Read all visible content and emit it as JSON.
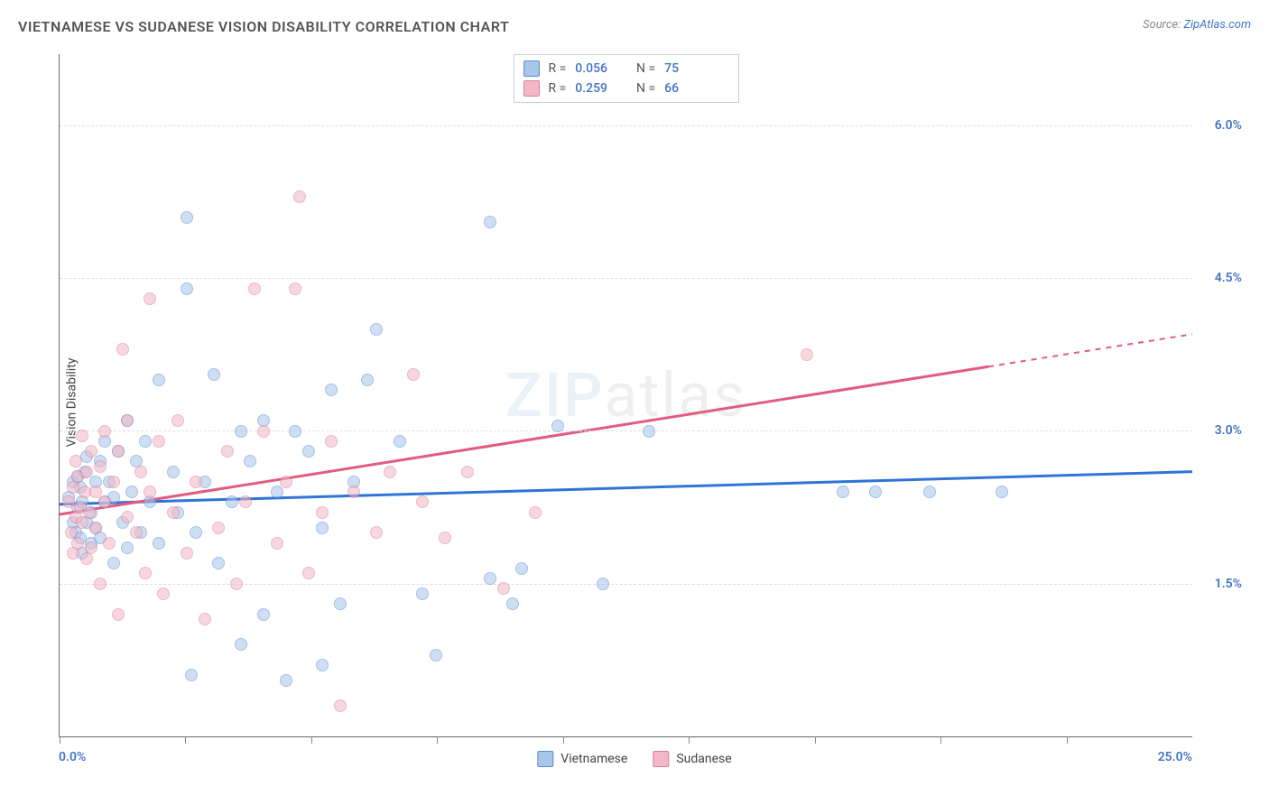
{
  "title": "VIETNAMESE VS SUDANESE VISION DISABILITY CORRELATION CHART",
  "source_prefix": "Source: ",
  "source_link": "ZipAtlas.com",
  "chart": {
    "type": "scatter",
    "ylabel": "Vision Disability",
    "watermark": "ZIPatlas",
    "xlim": [
      0.0,
      25.0
    ],
    "ylim": [
      0.0,
      6.7
    ],
    "x_tick_step": 2.778,
    "y_grid": [
      1.5,
      3.0,
      4.5,
      6.0
    ],
    "y_grid_labels": [
      "1.5%",
      "3.0%",
      "4.5%",
      "6.0%"
    ],
    "xlim_labels": [
      "0.0%",
      "25.0%"
    ],
    "label_color": "#4472c4",
    "axis_label_color": "#444444",
    "grid_color": "#dddddd",
    "background_color": "#ffffff",
    "marker_radius": 7,
    "marker_opacity": 0.55,
    "line_width": 3,
    "series": [
      {
        "name": "Vietnamese",
        "fill": "#a8c5ea",
        "stroke": "#5b8dd6",
        "line_color": "#2e75d6",
        "R": "0.056",
        "N": "75",
        "trend": {
          "x1": 0,
          "y1": 2.28,
          "x2": 25,
          "y2": 2.6,
          "dash_from_x": 25
        },
        "points": [
          [
            0.2,
            2.35
          ],
          [
            0.3,
            2.1
          ],
          [
            0.3,
            2.5
          ],
          [
            0.35,
            2.0
          ],
          [
            0.4,
            2.55
          ],
          [
            0.4,
            2.25
          ],
          [
            0.45,
            1.95
          ],
          [
            0.45,
            2.45
          ],
          [
            0.5,
            2.3
          ],
          [
            0.5,
            1.8
          ],
          [
            0.55,
            2.6
          ],
          [
            0.6,
            2.1
          ],
          [
            0.6,
            2.75
          ],
          [
            0.7,
            2.2
          ],
          [
            0.7,
            1.9
          ],
          [
            0.8,
            2.5
          ],
          [
            0.8,
            2.05
          ],
          [
            0.9,
            2.7
          ],
          [
            0.9,
            1.95
          ],
          [
            1.0,
            2.3
          ],
          [
            1.0,
            2.9
          ],
          [
            1.1,
            2.5
          ],
          [
            1.2,
            1.7
          ],
          [
            1.2,
            2.35
          ],
          [
            1.3,
            2.8
          ],
          [
            1.4,
            2.1
          ],
          [
            1.5,
            3.1
          ],
          [
            1.5,
            1.85
          ],
          [
            1.6,
            2.4
          ],
          [
            1.7,
            2.7
          ],
          [
            1.8,
            2.0
          ],
          [
            1.9,
            2.9
          ],
          [
            2.0,
            2.3
          ],
          [
            2.2,
            3.5
          ],
          [
            2.2,
            1.9
          ],
          [
            2.5,
            2.6
          ],
          [
            2.6,
            2.2
          ],
          [
            2.8,
            5.1
          ],
          [
            2.8,
            4.4
          ],
          [
            2.9,
            0.6
          ],
          [
            3.0,
            2.0
          ],
          [
            3.2,
            2.5
          ],
          [
            3.4,
            3.55
          ],
          [
            3.5,
            1.7
          ],
          [
            3.8,
            2.3
          ],
          [
            4.0,
            3.0
          ],
          [
            4.0,
            0.9
          ],
          [
            4.2,
            2.7
          ],
          [
            4.5,
            1.2
          ],
          [
            4.5,
            3.1
          ],
          [
            4.8,
            2.4
          ],
          [
            5.0,
            0.55
          ],
          [
            5.2,
            3.0
          ],
          [
            5.5,
            2.8
          ],
          [
            5.8,
            2.05
          ],
          [
            5.8,
            0.7
          ],
          [
            6.0,
            3.4
          ],
          [
            6.2,
            1.3
          ],
          [
            6.5,
            2.5
          ],
          [
            6.8,
            3.5
          ],
          [
            7.0,
            4.0
          ],
          [
            7.5,
            2.9
          ],
          [
            8.0,
            1.4
          ],
          [
            8.3,
            0.8
          ],
          [
            9.5,
            5.05
          ],
          [
            9.5,
            1.55
          ],
          [
            10.0,
            1.3
          ],
          [
            10.2,
            1.65
          ],
          [
            11.0,
            3.05
          ],
          [
            12.0,
            1.5
          ],
          [
            13.0,
            3.0
          ],
          [
            17.3,
            2.4
          ],
          [
            18.0,
            2.4
          ],
          [
            20.8,
            2.4
          ],
          [
            19.2,
            2.4
          ]
        ]
      },
      {
        "name": "Sudanese",
        "fill": "#f2b8c6",
        "stroke": "#e27a96",
        "line_color": "#e35a82",
        "R": "0.259",
        "N": "66",
        "trend": {
          "x1": 0,
          "y1": 2.18,
          "x2": 25,
          "y2": 3.95,
          "dash_from_x": 20.5
        },
        "points": [
          [
            0.2,
            2.3
          ],
          [
            0.25,
            2.0
          ],
          [
            0.3,
            1.8
          ],
          [
            0.3,
            2.45
          ],
          [
            0.35,
            2.7
          ],
          [
            0.35,
            2.15
          ],
          [
            0.4,
            2.55
          ],
          [
            0.4,
            1.9
          ],
          [
            0.45,
            2.25
          ],
          [
            0.5,
            2.95
          ],
          [
            0.5,
            2.1
          ],
          [
            0.55,
            2.4
          ],
          [
            0.6,
            1.75
          ],
          [
            0.6,
            2.6
          ],
          [
            0.65,
            2.2
          ],
          [
            0.7,
            2.8
          ],
          [
            0.7,
            1.85
          ],
          [
            0.8,
            2.4
          ],
          [
            0.8,
            2.05
          ],
          [
            0.9,
            2.65
          ],
          [
            0.9,
            1.5
          ],
          [
            1.0,
            2.3
          ],
          [
            1.0,
            3.0
          ],
          [
            1.1,
            1.9
          ],
          [
            1.2,
            2.5
          ],
          [
            1.3,
            1.2
          ],
          [
            1.3,
            2.8
          ],
          [
            1.4,
            3.8
          ],
          [
            1.5,
            2.15
          ],
          [
            1.5,
            3.1
          ],
          [
            1.7,
            2.0
          ],
          [
            1.8,
            2.6
          ],
          [
            1.9,
            1.6
          ],
          [
            2.0,
            4.3
          ],
          [
            2.0,
            2.4
          ],
          [
            2.2,
            2.9
          ],
          [
            2.3,
            1.4
          ],
          [
            2.5,
            2.2
          ],
          [
            2.6,
            3.1
          ],
          [
            2.8,
            1.8
          ],
          [
            3.0,
            2.5
          ],
          [
            3.2,
            1.15
          ],
          [
            3.5,
            2.05
          ],
          [
            3.7,
            2.8
          ],
          [
            3.9,
            1.5
          ],
          [
            4.1,
            2.3
          ],
          [
            4.3,
            4.4
          ],
          [
            4.5,
            3.0
          ],
          [
            4.8,
            1.9
          ],
          [
            5.0,
            2.5
          ],
          [
            5.2,
            4.4
          ],
          [
            5.3,
            5.3
          ],
          [
            5.5,
            1.6
          ],
          [
            5.8,
            2.2
          ],
          [
            6.0,
            2.9
          ],
          [
            6.2,
            0.3
          ],
          [
            6.5,
            2.4
          ],
          [
            7.0,
            2.0
          ],
          [
            7.3,
            2.6
          ],
          [
            7.8,
            3.55
          ],
          [
            8.0,
            2.3
          ],
          [
            8.5,
            1.95
          ],
          [
            9.0,
            2.6
          ],
          [
            9.8,
            1.45
          ],
          [
            10.5,
            2.2
          ],
          [
            16.5,
            3.75
          ]
        ]
      }
    ]
  },
  "bottom_legend": {
    "items": [
      {
        "label": "Vietnamese",
        "fill": "#a8c5ea",
        "stroke": "#5b8dd6"
      },
      {
        "label": "Sudanese",
        "fill": "#f2b8c6",
        "stroke": "#e27a96"
      }
    ]
  }
}
